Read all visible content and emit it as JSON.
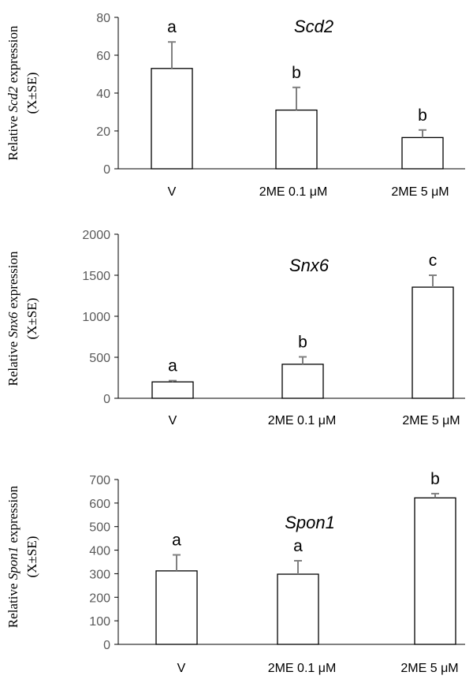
{
  "chart_data": [
    {
      "type": "bar",
      "title": "Scd2",
      "ylabel_prefix": "Relative ",
      "ylabel_gene": "Scd2",
      "ylabel_suffix": " expression",
      "ylabel_line2": "(X±SE)",
      "categories": [
        "V",
        "2ME 0.1 μM",
        "2ME 5 μM"
      ],
      "values": [
        53,
        31,
        16.5
      ],
      "errors": [
        14,
        12,
        4
      ],
      "significance": [
        "a",
        "b",
        "b"
      ],
      "ylim": [
        0,
        80
      ],
      "yticks": [
        0,
        20,
        40,
        60,
        80
      ],
      "grid": false
    },
    {
      "type": "bar",
      "title": "Snx6",
      "ylabel_prefix": "Relative ",
      "ylabel_gene": "Snx6",
      "ylabel_suffix": " expression",
      "ylabel_line2": "(X±SE)",
      "categories": [
        "V",
        "2ME 0.1 μM",
        "2ME 5 μM"
      ],
      "values": [
        200,
        415,
        1355
      ],
      "errors": [
        15,
        90,
        145
      ],
      "significance": [
        "a",
        "b",
        "c"
      ],
      "ylim": [
        0,
        2000
      ],
      "yticks": [
        0,
        500,
        1000,
        1500,
        2000
      ],
      "grid": false
    },
    {
      "type": "bar",
      "title": "Spon1",
      "ylabel_prefix": "Relative ",
      "ylabel_gene": "Spon1",
      "ylabel_suffix": " expression",
      "ylabel_line2": "(X±SE)",
      "categories": [
        "V",
        "2ME 0.1 μM",
        "2ME 5 μM"
      ],
      "values": [
        312,
        298,
        622
      ],
      "errors": [
        68,
        57,
        18
      ],
      "significance": [
        "a",
        "a",
        "b"
      ],
      "ylim": [
        0,
        700
      ],
      "yticks": [
        0,
        100,
        200,
        300,
        400,
        500,
        600,
        700
      ],
      "grid": false
    }
  ]
}
